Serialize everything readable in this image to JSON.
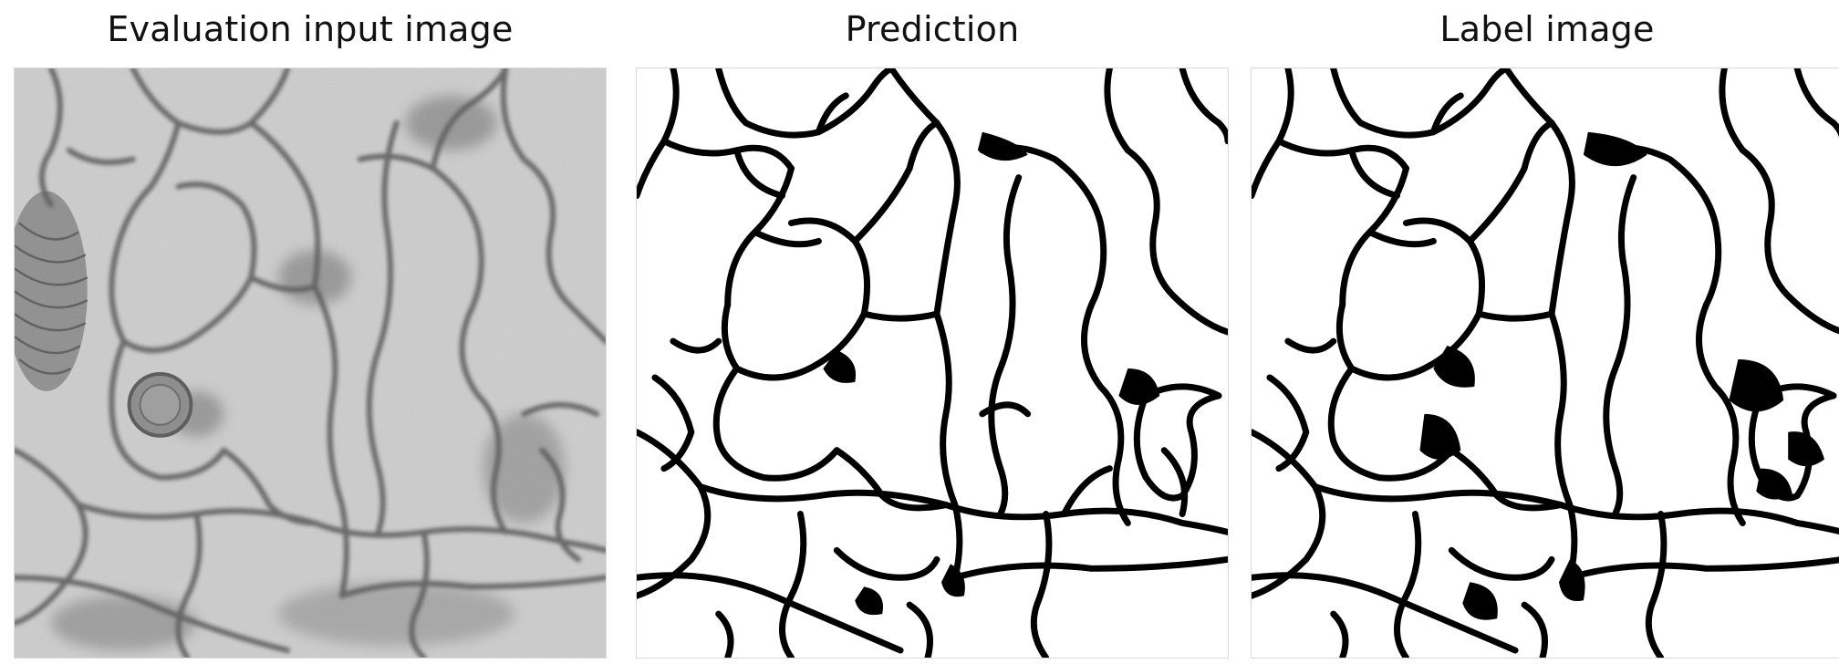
{
  "figure": {
    "panels": [
      {
        "title": "Evaluation input image",
        "content": "grayscale electron microscopy image of neuronal tissue"
      },
      {
        "title": "Prediction",
        "content": "binary membrane segmentation map (black membranes on white)"
      },
      {
        "title": "Label image",
        "content": "binary ground-truth membrane map (black membranes on white)"
      }
    ],
    "colors": {
      "membrane": "#000000",
      "background": "#ffffff",
      "em_base": "#cfcfcf"
    }
  }
}
